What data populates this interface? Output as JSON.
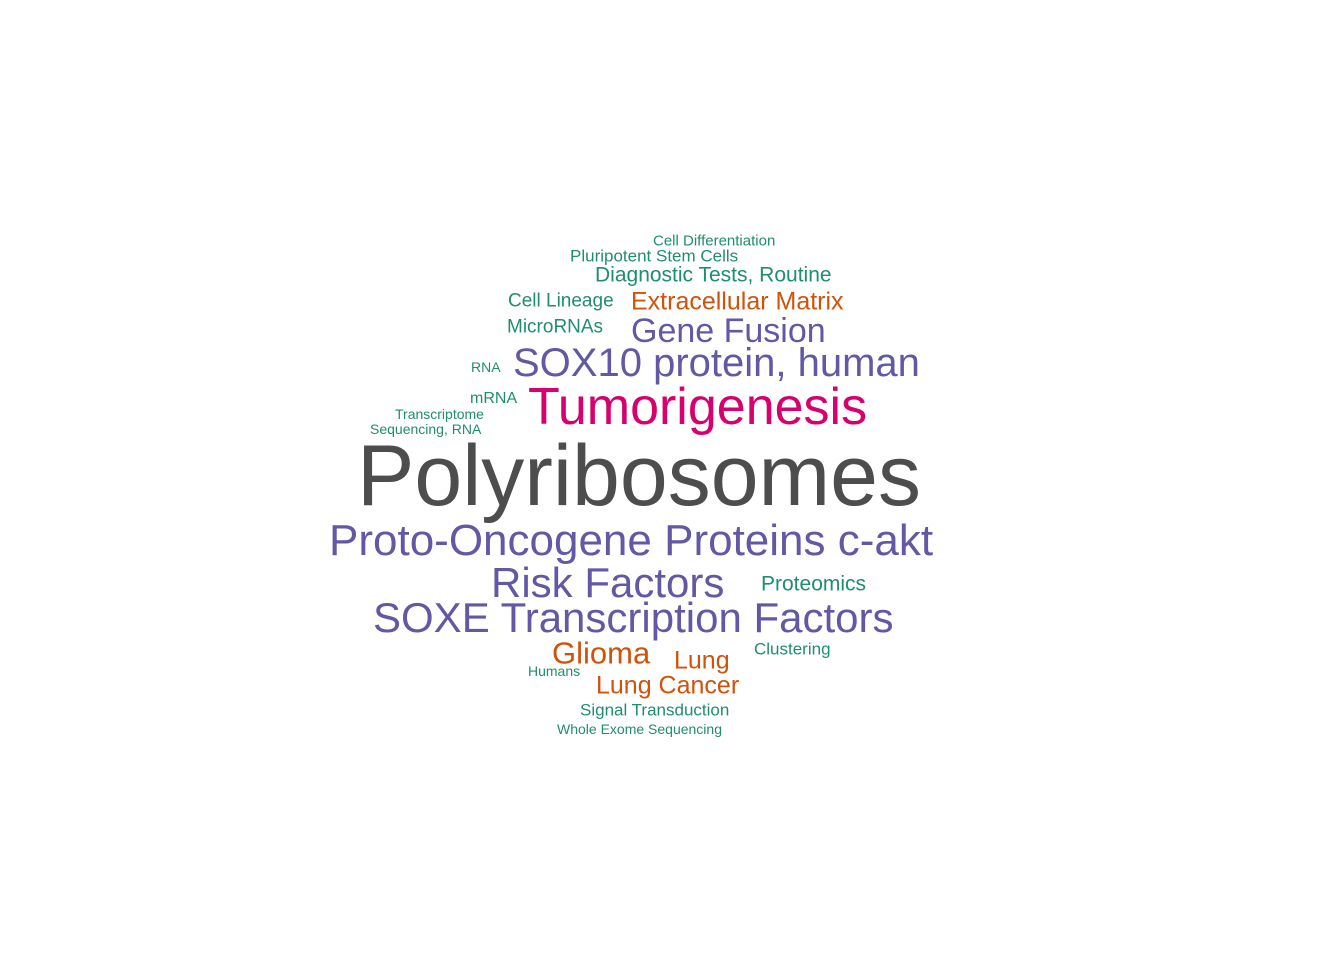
{
  "colors": {
    "dark": "#4d4d4d",
    "magenta": "#d6006f",
    "purple": "#6258a4",
    "orange": "#d1520b",
    "green": "#1f8e6e"
  },
  "words": [
    {
      "text": "Polyribosomes",
      "color": "#4d4d4d",
      "weight": 10
    },
    {
      "text": "Tumorigenesis",
      "color": "#d6006f",
      "weight": 5
    },
    {
      "text": "SOX10 protein, human",
      "color": "#6258a4",
      "weight": 4
    },
    {
      "text": "Proto-Oncogene Proteins c-akt",
      "color": "#6258a4",
      "weight": 4
    },
    {
      "text": "Risk Factors",
      "color": "#6258a4",
      "weight": 4
    },
    {
      "text": "SOXE Transcription Factors",
      "color": "#6258a4",
      "weight": 4
    },
    {
      "text": "Gene Fusion",
      "color": "#6258a4",
      "weight": 3
    },
    {
      "text": "Glioma",
      "color": "#d1520b",
      "weight": 3
    },
    {
      "text": "Lung",
      "color": "#d1520b",
      "weight": 2
    },
    {
      "text": "Lung Cancer",
      "color": "#d1520b",
      "weight": 2
    },
    {
      "text": "Extracellular Matrix",
      "color": "#d1520b",
      "weight": 2
    },
    {
      "text": "Diagnostic Tests, Routine",
      "color": "#1f8e6e",
      "weight": 2
    },
    {
      "text": "Cell Lineage",
      "color": "#1f8e6e",
      "weight": 2
    },
    {
      "text": "MicroRNAs",
      "color": "#1f8e6e",
      "weight": 2
    },
    {
      "text": "Proteomics",
      "color": "#1f8e6e",
      "weight": 2
    },
    {
      "text": "Pluripotent Stem Cells",
      "color": "#1f8e6e",
      "weight": 1
    },
    {
      "text": "Signal Transduction",
      "color": "#1f8e6e",
      "weight": 1
    },
    {
      "text": "Clustering",
      "color": "#1f8e6e",
      "weight": 1
    },
    {
      "text": "mRNA",
      "color": "#1f8e6e",
      "weight": 1
    },
    {
      "text": "Cell Differentiation",
      "color": "#1f8e6e",
      "weight": 1
    },
    {
      "text": "Transcriptome",
      "color": "#1f8e6e",
      "weight": 1
    },
    {
      "text": "Sequencing, RNA",
      "color": "#1f8e6e",
      "weight": 1
    },
    {
      "text": "RNA",
      "color": "#1f8e6e",
      "weight": 1
    },
    {
      "text": "Humans",
      "color": "#1f8e6e",
      "weight": 1
    },
    {
      "text": "Whole Exome Sequencing",
      "color": "#1f8e6e",
      "weight": 1
    }
  ]
}
